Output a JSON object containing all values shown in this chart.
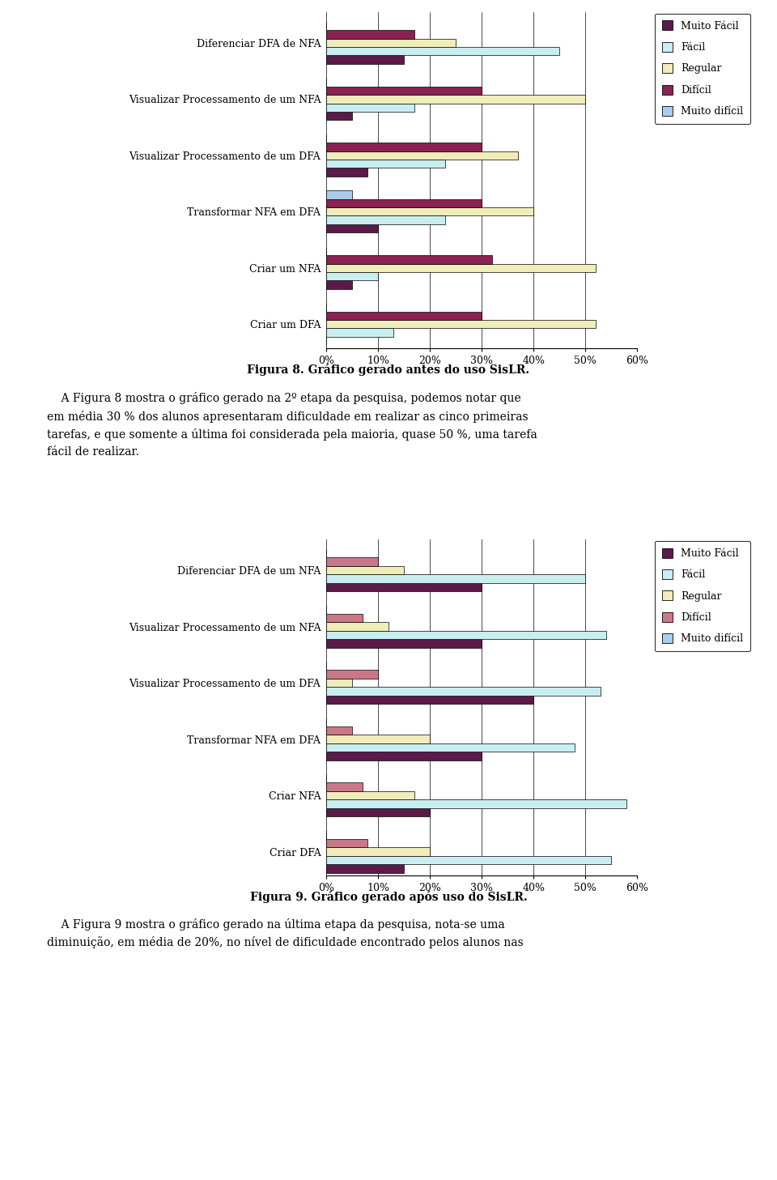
{
  "chart1": {
    "categories": [
      "Criar um DFA",
      "Criar um NFA",
      "Transformar NFA em DFA",
      "Visualizar Processamento de um DFA",
      "Visualizar Processamento de um NFA",
      "Diferenciar DFA de NFA"
    ],
    "series": {
      "Muito Fácil": [
        0,
        5,
        10,
        8,
        5,
        15
      ],
      "Fácil": [
        13,
        10,
        23,
        23,
        17,
        45
      ],
      "Regular": [
        52,
        52,
        40,
        37,
        50,
        25
      ],
      "Difícil": [
        30,
        32,
        30,
        30,
        30,
        17
      ],
      "Muito difícil": [
        0,
        0,
        5,
        0,
        0,
        0
      ]
    },
    "colors": {
      "Muito Fácil": "#5C1A4A",
      "Fácil": "#C8EEF0",
      "Regular": "#F0EDBB",
      "Difícil": "#8B2252",
      "Muito difícil": "#AACCEE"
    }
  },
  "chart2": {
    "categories": [
      "Criar DFA",
      "Criar NFA",
      "Transformar NFA em DFA",
      "Visualizar Processamento de um DFA",
      "Visualizar Processamento de um NFA",
      "Diferenciar DFA de um NFA"
    ],
    "series": {
      "Muito Fácil": [
        15,
        20,
        30,
        40,
        30,
        30
      ],
      "Fácil": [
        55,
        58,
        48,
        53,
        54,
        50
      ],
      "Regular": [
        20,
        17,
        20,
        5,
        12,
        15
      ],
      "Difícil": [
        8,
        7,
        5,
        10,
        7,
        10
      ],
      "Muito difícil": [
        0,
        0,
        0,
        0,
        0,
        0
      ]
    },
    "colors": {
      "Muito Fácil": "#5C1A4A",
      "Fácil": "#C8EEF0",
      "Regular": "#F0EDBB",
      "Difícil": "#CC7788",
      "Muito difícil": "#AACCEE"
    }
  },
  "series_order": [
    "Muito Fácil",
    "Fácil",
    "Regular",
    "Difícil",
    "Muito difícil"
  ],
  "caption1": "Figura 8. Gráfico gerado antes do uso SisLR.",
  "caption2": "Figura 9. Gráfico gerado após uso do SisLR.",
  "paragraph1": "    A Figura 8 mostra o gráfico gerado na 2º etapa da pesquisa, podemos notar que\nem média 30 % dos alunos apresentaram dificuldade em realizar as cinco primeiras\ntarefas, e que somente a última foi considerada pela maioria, quase 50 %, uma tarefa\nfácil de realizar.",
  "paragraph2": "    A Figura 9 mostra o gráfico gerado na última etapa da pesquisa, nota-se uma\ndiminuição, em média de 20%, no nível de dificuldade encontrado pelos alunos nas",
  "xlim": [
    0,
    60
  ],
  "xticks": [
    0,
    10,
    20,
    30,
    40,
    50,
    60
  ],
  "bg": "#FFFFFF"
}
